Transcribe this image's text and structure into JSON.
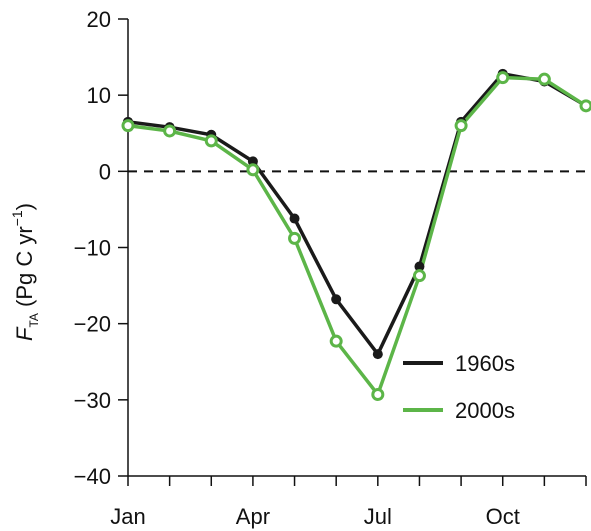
{
  "chart_data": {
    "type": "line",
    "ylabel_symbol": "F",
    "ylabel_subscript": "TA",
    "ylabel_unit_open": " (Pg C yr",
    "ylabel_unit_exp": "−1",
    "ylabel_unit_close": ")",
    "x": [
      1,
      2,
      3,
      4,
      5,
      6,
      7,
      8,
      9,
      10,
      11,
      12
    ],
    "xlim": [
      1,
      12
    ],
    "ylim": [
      -40,
      20
    ],
    "x_ticks": [
      1,
      2,
      3,
      4,
      5,
      6,
      7,
      8,
      9,
      10,
      11,
      12
    ],
    "x_tick_labels": [
      {
        "value": 1,
        "label": "Jan"
      },
      {
        "value": 4,
        "label": "Apr"
      },
      {
        "value": 7,
        "label": "Jul"
      },
      {
        "value": 10,
        "label": "Oct"
      }
    ],
    "y_ticks": [
      {
        "value": 20,
        "label": "20"
      },
      {
        "value": 10,
        "label": "10"
      },
      {
        "value": 0,
        "label": "0"
      },
      {
        "value": -10,
        "label": "−10"
      },
      {
        "value": -20,
        "label": "−20"
      },
      {
        "value": -30,
        "label": "−30"
      },
      {
        "value": -40,
        "label": "−40"
      }
    ],
    "reference_line": {
      "y": 0,
      "style": "dashed",
      "color": "#111111"
    },
    "series": [
      {
        "name": "1960s",
        "color": "#1a1a1a",
        "marker": "filled-circle",
        "values": [
          6.5,
          5.8,
          4.8,
          1.3,
          -6.2,
          -16.8,
          -24.0,
          -12.5,
          6.5,
          12.8,
          11.8,
          8.6
        ]
      },
      {
        "name": "2000s",
        "color": "#5cb548",
        "marker": "open-circle",
        "values": [
          6.0,
          5.3,
          4.0,
          0.2,
          -8.8,
          -22.3,
          -29.3,
          -13.7,
          6.0,
          12.3,
          12.1,
          8.6
        ]
      }
    ],
    "legend_position": "lower-right",
    "grid": false
  }
}
